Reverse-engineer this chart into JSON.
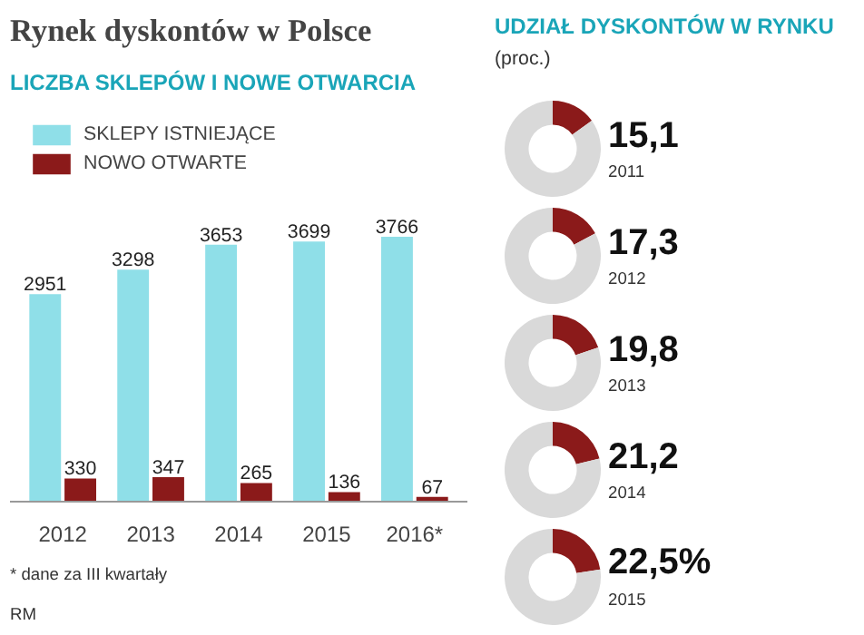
{
  "chart_data": [
    {
      "type": "bar",
      "title": "Rynek dyskontów w Polsce",
      "subtitle": "LICZBA SKLEPÓW I NOWE OTWARCIA",
      "categories": [
        "2012",
        "2013",
        "2014",
        "2015",
        "2016*"
      ],
      "series": [
        {
          "name": "SKLEPY ISTNIEJĄCE",
          "color": "#8fdfe8",
          "values": [
            2951,
            3298,
            3653,
            3699,
            3766
          ]
        },
        {
          "name": "NOWO OTWARTE",
          "color": "#8b1a1a",
          "values": [
            330,
            347,
            265,
            136,
            67
          ]
        }
      ],
      "data_labels": true,
      "legend": "top left",
      "grid": false,
      "annotations": [
        "* dane za III kwartały",
        "RM"
      ]
    },
    {
      "type": "donut",
      "title": "UDZIAŁ DYSKONTÓW W RYNKU",
      "annotations": [
        "(proc.)"
      ],
      "subtitle": "2011",
      "categories": [
        null,
        null
      ],
      "values": [
        15.1,
        84.9
      ],
      "colors": [
        "#8b1a1a",
        "#d9d9d9"
      ],
      "value_labels": [
        "15,1",
        null
      ]
    },
    {
      "type": "donut",
      "subtitle": "2012",
      "categories": [
        null,
        null
      ],
      "values": [
        17.3,
        82.7
      ],
      "colors": [
        "#8b1a1a",
        "#d9d9d9"
      ],
      "value_labels": [
        "17,3",
        null
      ]
    },
    {
      "type": "donut",
      "subtitle": "2013",
      "categories": [
        null,
        null
      ],
      "values": [
        19.8,
        80.2
      ],
      "colors": [
        "#8b1a1a",
        "#d9d9d9"
      ],
      "value_labels": [
        "19,8",
        null
      ]
    },
    {
      "type": "donut",
      "subtitle": "2014",
      "categories": [
        null,
        null
      ],
      "values": [
        21.2,
        78.8
      ],
      "colors": [
        "#8b1a1a",
        "#d9d9d9"
      ],
      "value_labels": [
        "21,2",
        null
      ]
    },
    {
      "type": "donut",
      "subtitle": "2015",
      "categories": [
        null,
        null
      ],
      "values": [
        22.5,
        77.5
      ],
      "colors": [
        "#8b1a1a",
        "#d9d9d9"
      ],
      "value_labels": [
        "22,5%",
        null
      ]
    }
  ]
}
